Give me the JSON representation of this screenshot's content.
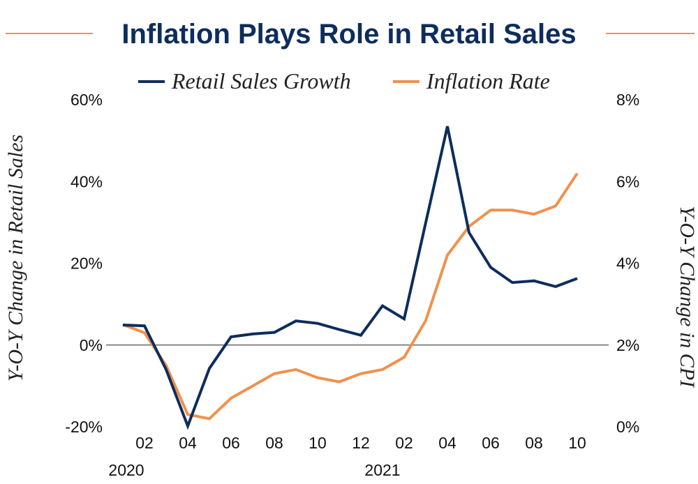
{
  "chart_data": {
    "type": "line",
    "title": "Inflation Plays Role in Retail Sales",
    "x": [
      "2020-01",
      "2020-02",
      "2020-03",
      "2020-04",
      "2020-05",
      "2020-06",
      "2020-07",
      "2020-08",
      "2020-09",
      "2020-10",
      "2020-11",
      "2020-12",
      "2021-01",
      "2021-02",
      "2021-03",
      "2021-04",
      "2021-05",
      "2021-06",
      "2021-07",
      "2021-08",
      "2021-09",
      "2021-10"
    ],
    "x_tick_labels": [
      "02",
      "04",
      "06",
      "08",
      "10",
      "12",
      "02",
      "04",
      "06",
      "08",
      "10"
    ],
    "x_tick_index": [
      1,
      3,
      5,
      7,
      9,
      11,
      13,
      15,
      17,
      19,
      21
    ],
    "year_labels": [
      {
        "label": "2020",
        "at_index": 0
      },
      {
        "label": "2021",
        "at_index": 12
      }
    ],
    "series": [
      {
        "name": "Retail Sales Growth",
        "axis": "left",
        "color": "#0d2d5c",
        "values": [
          4.9,
          4.7,
          -6.0,
          -19.8,
          -5.7,
          2.0,
          2.7,
          3.1,
          5.9,
          5.3,
          3.8,
          2.4,
          9.6,
          6.4,
          30.0,
          53.5,
          27.5,
          19.0,
          15.3,
          15.7,
          14.3,
          16.3
        ]
      },
      {
        "name": "Inflation Rate",
        "axis": "right",
        "color": "#f0914e",
        "values": [
          2.5,
          2.3,
          1.5,
          0.3,
          0.2,
          0.7,
          1.0,
          1.3,
          1.4,
          1.2,
          1.1,
          1.3,
          1.4,
          1.7,
          2.6,
          4.2,
          4.9,
          5.3,
          5.3,
          5.2,
          5.4,
          6.2
        ]
      }
    ],
    "ylabel": "Y-O-Y Change in Retail Sales",
    "ylim": [
      -20,
      60
    ],
    "y_ticks": [
      -20,
      0,
      20,
      40,
      60
    ],
    "y_tick_labels": [
      "-20%",
      "0%",
      "20%",
      "40%",
      "60%"
    ],
    "ylabel_right": "Y-O-Y Change in CPI",
    "ylim_right": [
      0,
      8
    ],
    "y_ticks_right": [
      0,
      2,
      4,
      6,
      8
    ],
    "y_tick_labels_right": [
      "0%",
      "2%",
      "4%",
      "6%",
      "8%"
    ],
    "legend_position": "top-center",
    "grid": false,
    "zero_line": true
  }
}
